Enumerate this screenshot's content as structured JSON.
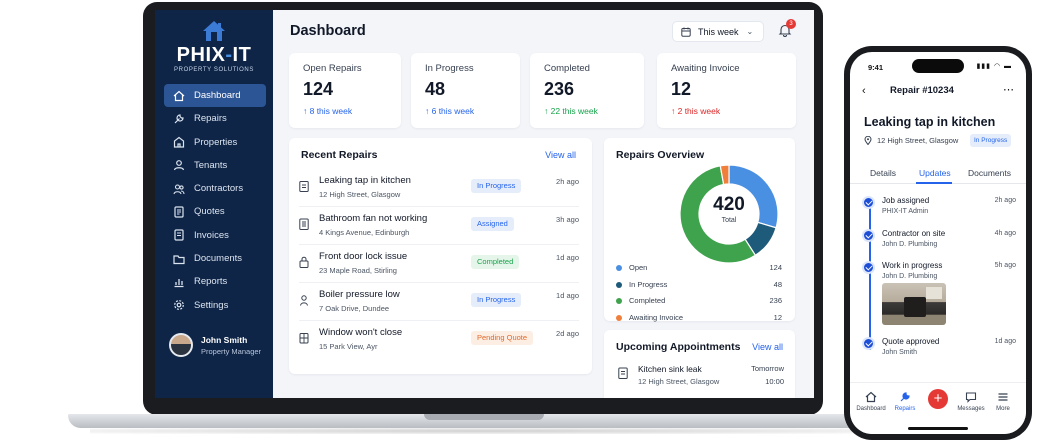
{
  "brand": {
    "name_part1": "PHIX",
    "name_dash": "-",
    "name_part2": "IT",
    "tagline": "PROPERTY SOLUTIONS",
    "accent": "#2563eb",
    "sidebar_bg": "#0e2547"
  },
  "sidebar": {
    "items": [
      {
        "label": "Dashboard",
        "icon": "home-icon",
        "active": true
      },
      {
        "label": "Repairs",
        "icon": "wrench-icon"
      },
      {
        "label": "Properties",
        "icon": "building-icon"
      },
      {
        "label": "Tenants",
        "icon": "person-icon"
      },
      {
        "label": "Contractors",
        "icon": "people-icon"
      },
      {
        "label": "Quotes",
        "icon": "quote-doc-icon"
      },
      {
        "label": "Invoices",
        "icon": "invoice-icon"
      },
      {
        "label": "Documents",
        "icon": "folder-icon"
      },
      {
        "label": "Reports",
        "icon": "chart-icon"
      },
      {
        "label": "Settings",
        "icon": "gear-icon"
      }
    ],
    "user": {
      "name": "John Smith",
      "role": "Property Manager"
    }
  },
  "header": {
    "title": "Dashboard",
    "range_label": "This week",
    "notification_count": "3"
  },
  "stats": [
    {
      "label": "Open Repairs",
      "value": "124",
      "delta": "↑ 8 this week",
      "color": "#2563eb"
    },
    {
      "label": "In Progress",
      "value": "48",
      "delta": "↑ 6 this week",
      "color": "#2563eb"
    },
    {
      "label": "Completed",
      "value": "236",
      "delta": "↑ 22 this week",
      "color": "#16a34a"
    },
    {
      "label": "Awaiting Invoice",
      "value": "12",
      "delta": "↑ 2 this week",
      "color": "#dc2626"
    }
  ],
  "recent_repairs": {
    "title": "Recent Repairs",
    "view_all": "View all",
    "rows": [
      {
        "title": "Leaking tap in kitchen",
        "address": "12 High Street, Glasgow",
        "status": "In Progress",
        "time": "2h ago"
      },
      {
        "title": "Bathroom fan not working",
        "address": "4 Kings Avenue, Edinburgh",
        "status": "Assigned",
        "time": "3h ago"
      },
      {
        "title": "Front door lock issue",
        "address": "23 Maple Road, Stirling",
        "status": "Completed",
        "time": "1d ago"
      },
      {
        "title": "Boiler pressure low",
        "address": "7 Oak Drive, Dundee",
        "status": "In Progress",
        "time": "1d ago"
      },
      {
        "title": "Window won't close",
        "address": "15 Park View, Ayr",
        "status": "Pending Quote",
        "time": "2d ago"
      }
    ]
  },
  "overview": {
    "title": "Repairs Overview",
    "total_value": "420",
    "total_label": "Total"
  },
  "chart_data": {
    "type": "pie",
    "title": "Repairs Overview",
    "categories": [
      "Open",
      "In Progress",
      "Completed",
      "Awaiting Invoice"
    ],
    "values": [
      124,
      48,
      236,
      12
    ],
    "colors": [
      "#4a90e2",
      "#1e5a7a",
      "#3fa34d",
      "#f07f3c"
    ],
    "legend": "below"
  },
  "appointments": {
    "title": "Upcoming Appointments",
    "view_all": "View all",
    "items": [
      {
        "title": "Kitchen sink leak",
        "address": "12 High Street, Glasgow",
        "day": "Tomorrow",
        "time": "10:00"
      }
    ]
  },
  "phone": {
    "time": "9:41",
    "status_icons": "▮▮▮ ◠ ▬",
    "header": "Repair #10234",
    "title": "Leaking tap in kitchen",
    "address": "12 High Street, Glasgow",
    "status": "In Progress",
    "tabs": [
      "Details",
      "Updates",
      "Documents"
    ],
    "timeline": [
      {
        "title": "Job assigned",
        "sub": "PHIX-IT Admin",
        "time": "2h ago"
      },
      {
        "title": "Contractor on site",
        "sub": "John D. Plumbing",
        "time": "4h ago"
      },
      {
        "title": "Work in progress",
        "sub": "John D. Plumbing",
        "time": "5h ago"
      },
      {
        "title": "Quote approved",
        "sub": "John Smith",
        "time": "1d ago"
      }
    ],
    "nav": [
      "Dashboard",
      "Repairs",
      "Messages",
      "More"
    ]
  }
}
